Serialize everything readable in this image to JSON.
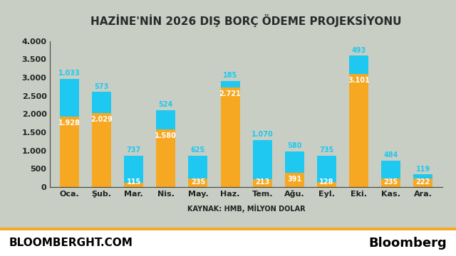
{
  "chart_data": {
    "type": "bar",
    "title": "HAZİNE'NİN 2026 DIŞ BORÇ ÖDEME PROJEKSİYONU",
    "x_label": "KAYNAK: HMB, MİLYON DOLAR",
    "footer_left": "BLOOMBERGHT.COM",
    "footer_right": "Bloomberg",
    "categories": [
      "Oca.",
      "Şub.",
      "Mar.",
      "Nis.",
      "May.",
      "Haz.",
      "Tem.",
      "Ağu.",
      "Eyl.",
      "Eki.",
      "Kas.",
      "Ara."
    ],
    "series": [
      {
        "color": "#f7a823",
        "values": [
          1928,
          2029,
          115,
          1580,
          235,
          2721,
          213,
          391,
          128,
          3101,
          235,
          222
        ],
        "value_labels": [
          "1.928",
          "2.029",
          "115",
          "1.580",
          "235",
          "2.721",
          "213",
          "391",
          "128",
          "3.101",
          "235",
          "222"
        ]
      },
      {
        "color": "#1ec8f0",
        "values": [
          1033,
          573,
          737,
          524,
          625,
          185,
          1070,
          580,
          735,
          493,
          484,
          119
        ],
        "value_labels": [
          "1.033",
          "573",
          "737",
          "524",
          "625",
          "185",
          "1.070",
          "580",
          "735",
          "493",
          "484",
          "119"
        ]
      }
    ],
    "stacked": true,
    "data_labels": true,
    "ylim": [
      0,
      4000
    ],
    "yticks": [
      0,
      500,
      {
        "value": 1000,
        "label": "1.000"
      },
      {
        "value": 1500,
        "label": "1.500"
      },
      {
        "value": 2000,
        "label": "2.000"
      },
      {
        "value": 2500,
        "label": "2.500"
      },
      {
        "value": 3000,
        "label": "3.000"
      },
      {
        "value": 3500,
        "label": "3.500"
      },
      {
        "value": 4000,
        "label": "4.000"
      }
    ],
    "grid": false
  }
}
